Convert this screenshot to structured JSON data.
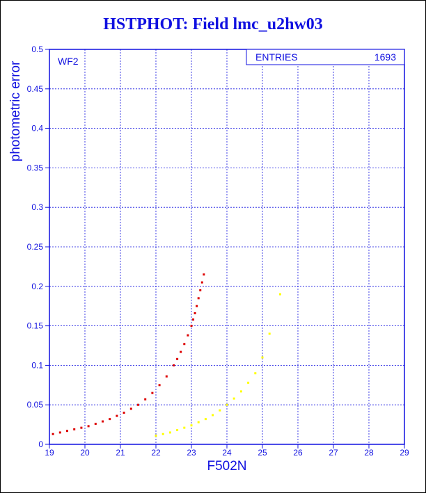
{
  "title": "HSTPHOT: Field lmc_u2hw03",
  "colors": {
    "axis": "#1010e0",
    "series_red": "#dd0000",
    "series_yellow": "#ffff00"
  },
  "chart_data": {
    "type": "scatter",
    "title": "HSTPHOT: Field lmc_u2hw03",
    "xlabel": "F502N",
    "ylabel": "photometric error",
    "xlim": [
      19,
      29
    ],
    "ylim": [
      0,
      0.5
    ],
    "xticks": [
      "19",
      "20",
      "21",
      "22",
      "23",
      "24",
      "25",
      "26",
      "27",
      "28",
      "29"
    ],
    "yticks": [
      "0",
      "0.05",
      "0.1",
      "0.15",
      "0.2",
      "0.25",
      "0.3",
      "0.35",
      "0.4",
      "0.45",
      "0.5"
    ],
    "grid": true,
    "panel_label": "WF2",
    "stats_box": {
      "label": "ENTRIES",
      "value": "1693"
    },
    "series": [
      {
        "color": "#dd0000",
        "x": [
          19.1,
          19.3,
          19.5,
          19.7,
          19.9,
          20.1,
          20.3,
          20.5,
          20.7,
          20.9,
          21.1,
          21.3,
          21.5,
          21.7,
          21.9,
          22.1,
          22.3,
          22.5,
          22.6,
          22.7,
          22.8,
          22.9,
          23.0,
          23.05,
          23.1,
          23.15,
          23.2,
          23.25,
          23.3,
          23.35
        ],
        "y": [
          0.013,
          0.015,
          0.017,
          0.019,
          0.021,
          0.023,
          0.026,
          0.029,
          0.032,
          0.036,
          0.04,
          0.045,
          0.05,
          0.057,
          0.065,
          0.075,
          0.086,
          0.1,
          0.108,
          0.117,
          0.127,
          0.138,
          0.15,
          0.158,
          0.166,
          0.175,
          0.185,
          0.195,
          0.205,
          0.215
        ]
      },
      {
        "color": "#ffff00",
        "x": [
          22.0,
          22.2,
          22.4,
          22.6,
          22.8,
          23.0,
          23.2,
          23.4,
          23.6,
          23.8,
          24.0,
          24.2,
          24.4,
          24.6,
          24.8,
          25.0,
          25.2,
          25.5
        ],
        "y": [
          0.011,
          0.013,
          0.015,
          0.018,
          0.021,
          0.024,
          0.028,
          0.032,
          0.037,
          0.043,
          0.05,
          0.058,
          0.067,
          0.078,
          0.09,
          0.11,
          0.14,
          0.19
        ]
      }
    ]
  }
}
